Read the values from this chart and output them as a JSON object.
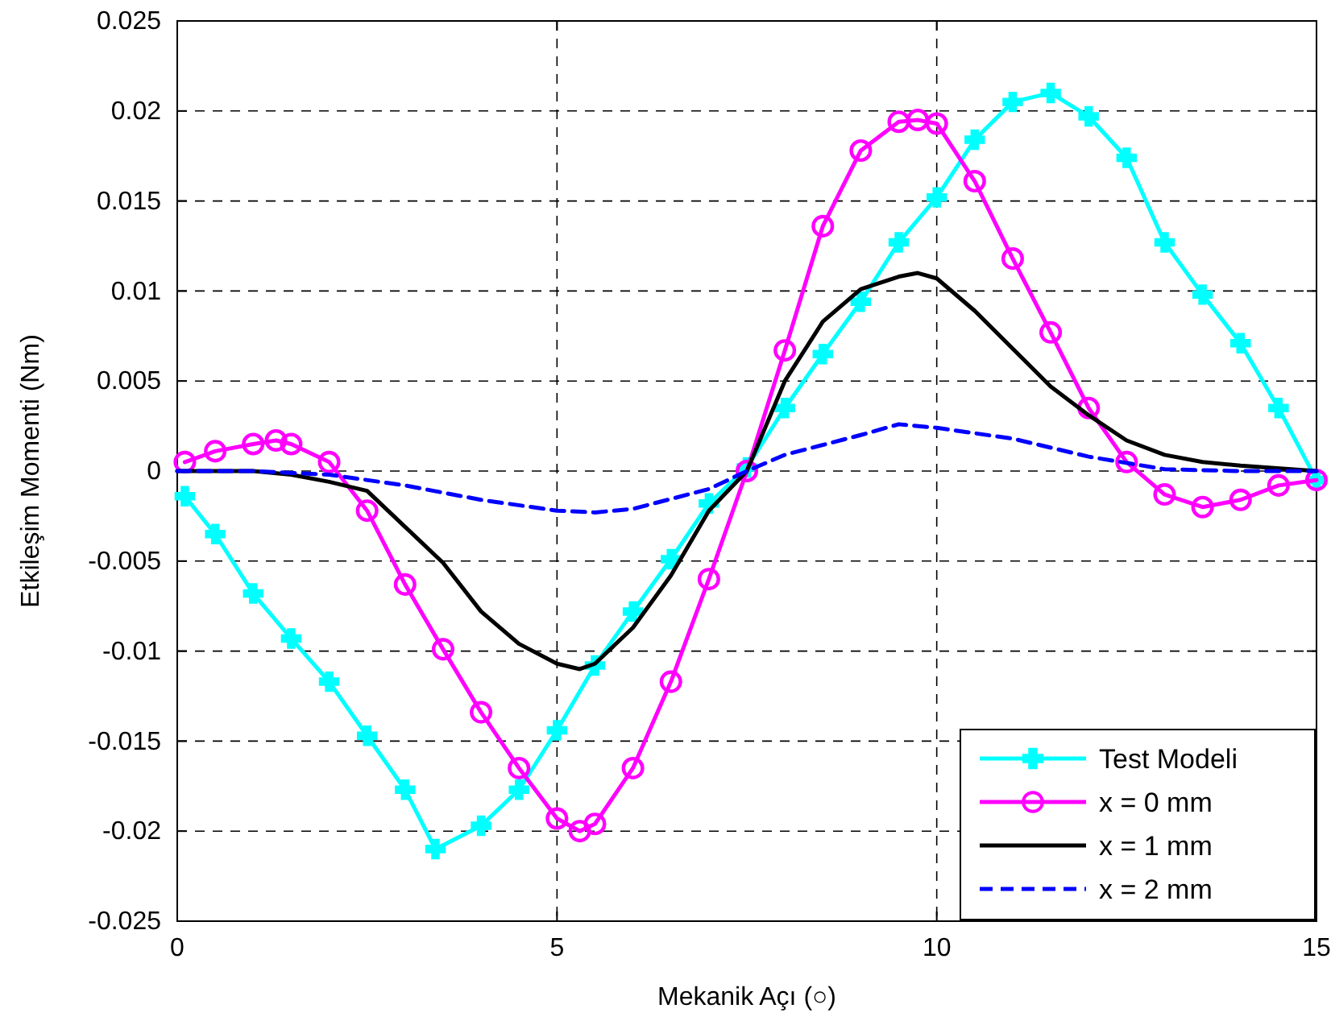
{
  "chart_data": {
    "type": "line",
    "xlabel": "Mekanik Açı (○)",
    "ylabel": "Etkileşim Momenti (Nm)",
    "xlim": [
      0,
      15
    ],
    "ylim": [
      -0.025,
      0.025
    ],
    "xticks": [
      0,
      5,
      10,
      15
    ],
    "yticks": [
      -0.025,
      -0.02,
      -0.015,
      -0.01,
      -0.005,
      0,
      0.005,
      0.01,
      0.015,
      0.02,
      0.025
    ],
    "grid": true,
    "legend": "bottom right",
    "series": [
      {
        "name": "Test Modeli",
        "color": "#00ffff",
        "marker": "cross",
        "line_style": "solid",
        "x": [
          0.1,
          0.5,
          1,
          1.5,
          2,
          2.5,
          3,
          3.4,
          4,
          4.5,
          5,
          5.5,
          6,
          6.5,
          7,
          7.5,
          8,
          8.5,
          9,
          9.5,
          10,
          10.5,
          11,
          11.5,
          12,
          12.5,
          13,
          13.5,
          14,
          14.5,
          15
        ],
        "values": [
          -0.0014,
          -0.0035,
          -0.0068,
          -0.0093,
          -0.0117,
          -0.0147,
          -0.0177,
          -0.021,
          -0.0197,
          -0.0177,
          -0.0144,
          -0.0108,
          -0.0078,
          -0.0049,
          -0.0018,
          0.0002,
          0.0035,
          0.0065,
          0.0094,
          0.0127,
          0.0152,
          0.0184,
          0.0205,
          0.021,
          0.0197,
          0.0174,
          0.0127,
          0.0098,
          0.0071,
          0.0035,
          -0.0005
        ]
      },
      {
        "name": "x = 0 mm",
        "color": "#ff00ff",
        "marker": "circle",
        "line_style": "solid",
        "x": [
          0.1,
          0.5,
          1,
          1.3,
          1.5,
          2,
          2.5,
          3,
          3.5,
          4,
          4.5,
          5,
          5.3,
          5.5,
          6,
          6.5,
          7,
          7.5,
          8,
          8.5,
          9,
          9.5,
          9.75,
          10,
          10.5,
          11,
          11.5,
          12,
          12.5,
          13,
          13.5,
          14,
          14.5,
          15
        ],
        "values": [
          0.0005,
          0.0011,
          0.0015,
          0.0017,
          0.0015,
          0.0005,
          -0.0022,
          -0.0063,
          -0.0099,
          -0.0134,
          -0.0165,
          -0.0193,
          -0.02,
          -0.0196,
          -0.0165,
          -0.0117,
          -0.006,
          0,
          0.0067,
          0.0136,
          0.0178,
          0.0194,
          0.0195,
          0.0193,
          0.0161,
          0.0118,
          0.0077,
          0.0035,
          0.0005,
          -0.0013,
          -0.002,
          -0.0016,
          -0.0008,
          -0.0005
        ]
      },
      {
        "name": "x = 1 mm",
        "color": "#000000",
        "marker": "none",
        "line_style": "solid",
        "x": [
          0,
          1,
          1.5,
          2,
          2.5,
          3,
          3.5,
          4,
          4.5,
          5,
          5.3,
          5.5,
          6,
          6.5,
          7,
          7.5,
          8,
          8.5,
          9,
          9.5,
          9.75,
          10,
          10.5,
          11,
          11.5,
          12,
          12.5,
          13,
          13.5,
          14,
          15
        ],
        "values": [
          0,
          0,
          -0.0002,
          -0.0006,
          -0.0011,
          -0.0031,
          -0.0051,
          -0.0078,
          -0.0096,
          -0.0107,
          -0.011,
          -0.0107,
          -0.0087,
          -0.0058,
          -0.0022,
          0,
          0.005,
          0.0083,
          0.0101,
          0.0108,
          0.011,
          0.0107,
          0.0089,
          0.0068,
          0.0047,
          0.0031,
          0.0017,
          0.0009,
          0.0005,
          0.0003,
          0
        ]
      },
      {
        "name": "x = 2 mm",
        "color": "#0000ff",
        "marker": "none",
        "line_style": "dashed",
        "x": [
          0,
          1,
          2,
          3,
          4,
          5,
          5.5,
          6,
          7,
          7.5,
          8,
          9,
          9.5,
          10,
          11,
          12,
          13,
          14,
          15
        ],
        "values": [
          0,
          0,
          -0.0002,
          -0.0008,
          -0.0016,
          -0.0022,
          -0.0023,
          -0.0021,
          -0.001,
          0,
          0.0009,
          0.002,
          0.0026,
          0.0024,
          0.0018,
          0.0008,
          0.0001,
          0,
          0
        ]
      }
    ]
  }
}
